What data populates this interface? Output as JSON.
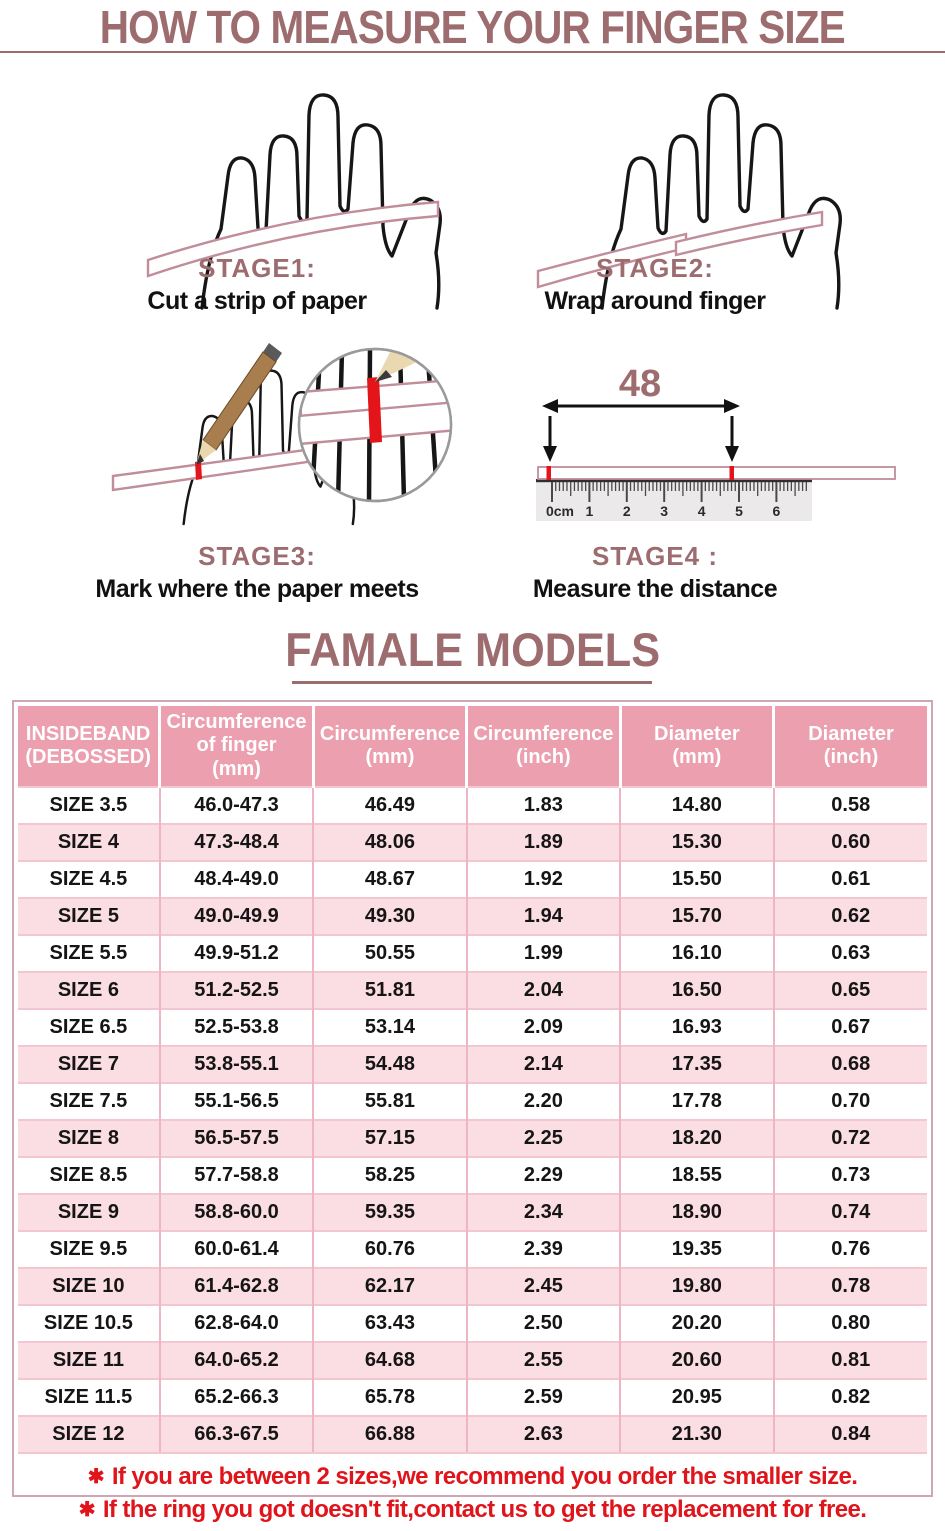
{
  "page": {
    "title": "HOW TO MEASURE YOUR FINGER SIZE"
  },
  "colors": {
    "accent": "#9d6c6f",
    "table_header_bg": "#ec9fae",
    "table_header_text": "#ffffff",
    "row_alt_bg": "#fbdde4",
    "grid_line": "#eeb5c2",
    "box_border": "#cfa6b2",
    "note_red": "#e0151c",
    "strip_pink": "#c08d99",
    "mark_red": "#e3151b"
  },
  "stages": [
    {
      "label": "STAGE1:",
      "caption": "Cut a strip of paper",
      "icon": "hand-with-paper-strip-icon"
    },
    {
      "label": "STAGE2:",
      "caption": "Wrap around finger",
      "icon": "hand-strip-wrapped-icon"
    },
    {
      "label": "STAGE3:",
      "caption": "Mark where the paper meets",
      "icon": "hand-pencil-magnifier-icon"
    },
    {
      "label": "STAGE4 :",
      "caption": "Measure the distance",
      "icon": "ruler-measure-icon"
    }
  ],
  "stage4": {
    "measurement": "48",
    "ruler_labels": [
      "0cm",
      "1",
      "2",
      "3",
      "4",
      "5",
      "6"
    ]
  },
  "section_title": "FAMALE MODELS",
  "table": {
    "headers": [
      [
        "INSIDEBAND",
        "(DEBOSSED)"
      ],
      [
        "Circumference",
        "of finger",
        "(mm)"
      ],
      [
        "Circumference",
        "(mm)"
      ],
      [
        "Circumference",
        "(inch)"
      ],
      [
        "Diameter",
        "(mm)"
      ],
      [
        "Diameter",
        "(inch)"
      ]
    ],
    "rows": [
      [
        "SIZE 3.5",
        "46.0-47.3",
        "46.49",
        "1.83",
        "14.80",
        "0.58"
      ],
      [
        "SIZE 4",
        "47.3-48.4",
        "48.06",
        "1.89",
        "15.30",
        "0.60"
      ],
      [
        "SIZE 4.5",
        "48.4-49.0",
        "48.67",
        "1.92",
        "15.50",
        "0.61"
      ],
      [
        "SIZE 5",
        "49.0-49.9",
        "49.30",
        "1.94",
        "15.70",
        "0.62"
      ],
      [
        "SIZE 5.5",
        "49.9-51.2",
        "50.55",
        "1.99",
        "16.10",
        "0.63"
      ],
      [
        "SIZE 6",
        "51.2-52.5",
        "51.81",
        "2.04",
        "16.50",
        "0.65"
      ],
      [
        "SIZE 6.5",
        "52.5-53.8",
        "53.14",
        "2.09",
        "16.93",
        "0.67"
      ],
      [
        "SIZE 7",
        "53.8-55.1",
        "54.48",
        "2.14",
        "17.35",
        "0.68"
      ],
      [
        "SIZE 7.5",
        "55.1-56.5",
        "55.81",
        "2.20",
        "17.78",
        "0.70"
      ],
      [
        "SIZE 8",
        "56.5-57.5",
        "57.15",
        "2.25",
        "18.20",
        "0.72"
      ],
      [
        "SIZE 8.5",
        "57.7-58.8",
        "58.25",
        "2.29",
        "18.55",
        "0.73"
      ],
      [
        "SIZE 9",
        "58.8-60.0",
        "59.35",
        "2.34",
        "18.90",
        "0.74"
      ],
      [
        "SIZE 9.5",
        "60.0-61.4",
        "60.76",
        "2.39",
        "19.35",
        "0.76"
      ],
      [
        "SIZE 10",
        "61.4-62.8",
        "62.17",
        "2.45",
        "19.80",
        "0.78"
      ],
      [
        "SIZE 10.5",
        "62.8-64.0",
        "63.43",
        "2.50",
        "20.20",
        "0.80"
      ],
      [
        "SIZE 11",
        "64.0-65.2",
        "64.68",
        "2.55",
        "20.60",
        "0.81"
      ],
      [
        "SIZE 11.5",
        "65.2-66.3",
        "65.78",
        "2.59",
        "20.95",
        "0.82"
      ],
      [
        "SIZE 12",
        "66.3-67.5",
        "66.88",
        "2.63",
        "21.30",
        "0.84"
      ]
    ]
  },
  "note_bullet": "✱",
  "notes": [
    "If you are between 2 sizes,we recommend you order the smaller size.",
    "If the ring you got doesn't fit,contact us to get the replacement for free."
  ]
}
